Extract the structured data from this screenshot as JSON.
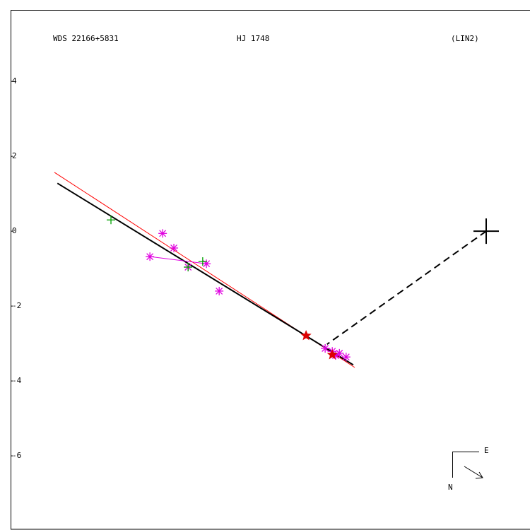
{
  "chart_data": {
    "type": "scatter",
    "labels": [
      "WDS 22166+5831",
      "HJ 1748",
      "(LIN2)"
    ],
    "compass": [
      "E",
      "N"
    ],
    "xlim": [
      -12.7,
      1.17
    ],
    "ylim": [
      -7.98,
      5.89
    ],
    "yticks": [
      4,
      2,
      0,
      -2,
      -4,
      -6
    ],
    "series": [
      {
        "color": "#e000e0",
        "marker": "asterisk",
        "x": [
          -8.64,
          -8.34,
          -8.98,
          -7.96,
          -7.47,
          -7.13,
          -4.3,
          -4.11,
          -3.92,
          -3.74,
          -4.02
        ],
        "values": [
          -0.06,
          -0.45,
          -0.68,
          -0.96,
          -0.87,
          -1.6,
          -3.13,
          -3.21,
          -3.26,
          -3.36,
          -3.32
        ]
      },
      {
        "color": "#00a000",
        "marker": "plus",
        "x": [
          -10.02,
          -7.96,
          -7.57
        ],
        "values": [
          0.3,
          -0.96,
          -0.81
        ]
      },
      {
        "color": "#dd0000",
        "marker": "star",
        "x": [
          -4.81,
          -4.11
        ],
        "values": [
          -2.79,
          -3.3
        ]
      }
    ],
    "lines": [
      {
        "color": "#ff0000",
        "width": 1,
        "dash": false,
        "x": [
          -11.53,
          -3.51
        ],
        "values": [
          1.57,
          -3.64
        ]
      },
      {
        "color": "#000000",
        "width": 2,
        "dash": false,
        "x": [
          -11.45,
          -3.55
        ],
        "values": [
          1.28,
          -3.57
        ]
      },
      {
        "color": "#e000e0",
        "width": 1,
        "dash": false,
        "x": [
          -8.98,
          -7.47
        ],
        "values": [
          -0.68,
          -0.87
        ]
      },
      {
        "color": "#000000",
        "width": 2,
        "dash": true,
        "x": [
          0,
          -4.25
        ],
        "values": [
          0,
          -3.02
        ]
      }
    ],
    "primary": {
      "x": 0,
      "y": 0
    }
  }
}
